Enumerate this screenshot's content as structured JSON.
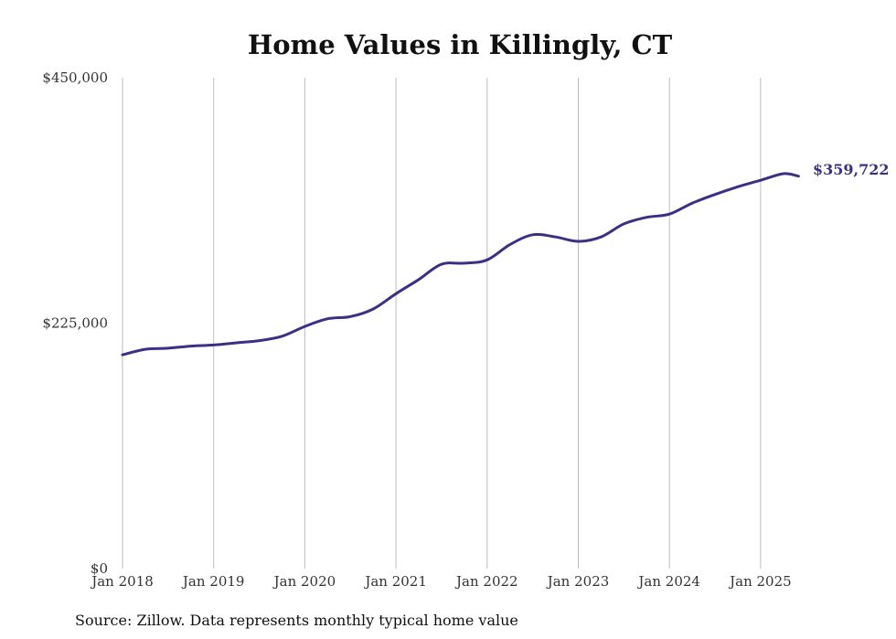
{
  "chart_data": {
    "type": "line",
    "title": "Home Values in Killingly, CT",
    "source_note": "Source: Zillow. Data represents monthly typical home value",
    "xlabel": "",
    "ylabel": "",
    "x_ticks": [
      "Jan 2018",
      "Jan 2019",
      "Jan 2020",
      "Jan 2021",
      "Jan 2022",
      "Jan 2023",
      "Jan 2024",
      "Jan 2025"
    ],
    "y_ticks": [
      "$0",
      "$225,000",
      "$450,000"
    ],
    "ylim": [
      0,
      450000
    ],
    "xlim": [
      "2018-01",
      "2025-06"
    ],
    "grid": "vertical",
    "line_color": "#3a3185",
    "end_label": "$359,722",
    "series": [
      {
        "x": [
          "2018-01",
          "2018-04",
          "2018-07",
          "2018-10",
          "2019-01",
          "2019-04",
          "2019-07",
          "2019-10",
          "2020-01",
          "2020-04",
          "2020-07",
          "2020-10",
          "2021-01",
          "2021-04",
          "2021-07",
          "2021-10",
          "2022-01",
          "2022-04",
          "2022-07",
          "2022-10",
          "2023-01",
          "2023-04",
          "2023-07",
          "2023-10",
          "2024-01",
          "2024-04",
          "2024-07",
          "2024-10",
          "2025-01",
          "2025-04",
          "2025-06"
        ],
        "values": [
          196000,
          201000,
          202000,
          204000,
          205000,
          207000,
          209000,
          213000,
          222000,
          229000,
          231000,
          238000,
          252000,
          265000,
          279000,
          280000,
          283000,
          297000,
          306000,
          304000,
          300000,
          304000,
          316000,
          322000,
          325000,
          335000,
          343000,
          350000,
          356000,
          362000,
          359722
        ]
      }
    ]
  }
}
